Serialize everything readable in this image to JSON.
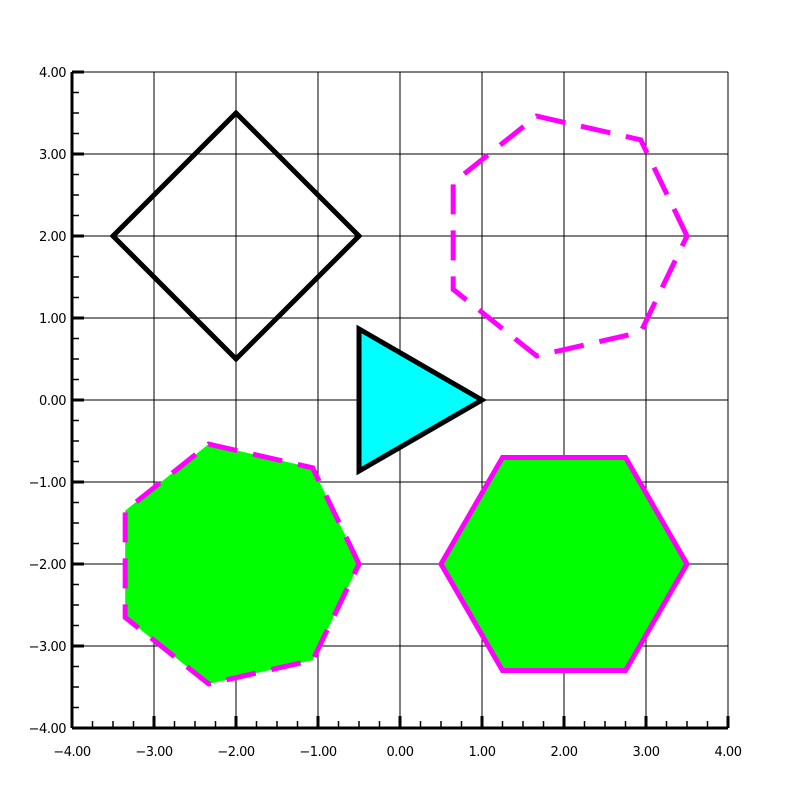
{
  "axes": {
    "xlim": [
      -4,
      4
    ],
    "ylim": [
      -4,
      4
    ],
    "major_step": 1,
    "minor_step": 0.25,
    "grid": true,
    "x_tick_labels": [
      "−4.00",
      "−3.00",
      "−2.00",
      "−1.00",
      "0.00",
      "1.00",
      "2.00",
      "3.00",
      "4.00"
    ],
    "y_tick_labels": [
      "−4.00",
      "−3.00",
      "−2.00",
      "−1.00",
      "0.00",
      "1.00",
      "2.00",
      "3.00",
      "4.00"
    ]
  },
  "shapes": [
    {
      "name": "diamond",
      "type": "regular-polygon",
      "center": [
        -2,
        2
      ],
      "circumradius": 1.5,
      "sides": 4,
      "rotation_deg": 0,
      "fill": "none",
      "stroke": "#000000",
      "line_style": "solid"
    },
    {
      "name": "dashed-heptagon",
      "type": "regular-polygon",
      "center": [
        2,
        2
      ],
      "circumradius": 1.5,
      "sides": 7,
      "rotation_deg": 0,
      "fill": "none",
      "stroke": "#ff00ff",
      "line_style": "dashed"
    },
    {
      "name": "triangle",
      "type": "regular-polygon",
      "center": [
        0,
        0
      ],
      "circumradius": 1.0,
      "sides": 3,
      "rotation_deg": 0,
      "fill": "#00ffff",
      "stroke": "#000000",
      "line_style": "solid"
    },
    {
      "name": "filled-heptagon",
      "type": "regular-polygon",
      "center": [
        -2,
        -2
      ],
      "circumradius": 1.5,
      "sides": 7,
      "rotation_deg": 0,
      "fill": "#00ff00",
      "stroke": "#ff00ff",
      "line_style": "dashed"
    },
    {
      "name": "hexagon",
      "type": "regular-polygon",
      "center": [
        2,
        -2
      ],
      "circumradius": 1.5,
      "sides": 6,
      "rotation_deg": 0,
      "fill": "#00ff00",
      "stroke": "#ff00ff",
      "line_style": "solid"
    }
  ]
}
